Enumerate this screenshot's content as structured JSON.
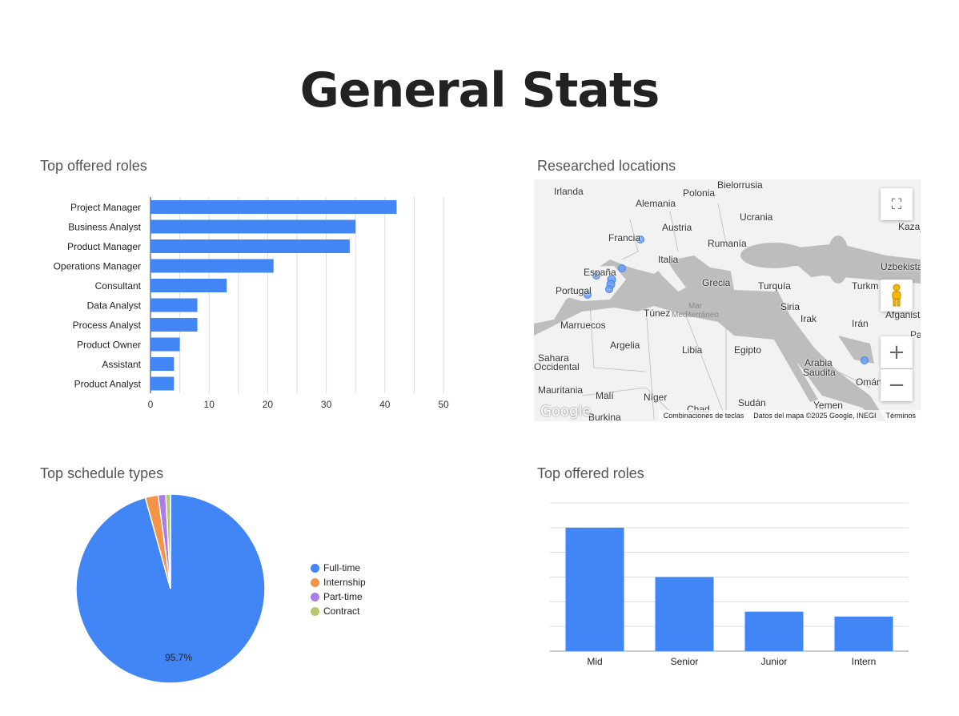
{
  "page": {
    "title": "General Stats"
  },
  "sections": {
    "roles_bar": "Top offered roles",
    "locations_map": "Researched locations",
    "schedule_pie": "Top schedule types",
    "seniority_bar": "Top offered roles"
  },
  "chart_data": [
    {
      "type": "bar",
      "orientation": "horizontal",
      "title": "Top offered roles",
      "categories": [
        "Project Manager",
        "Business Analyst",
        "Product Manager",
        "Operations Manager",
        "Consultant",
        "Data Analyst",
        "Process Analyst",
        "Product Owner",
        "Assistant",
        "Product Analyst"
      ],
      "values": [
        42,
        35,
        34,
        21,
        13,
        8,
        8,
        5,
        4,
        4
      ],
      "xlim": [
        0,
        50
      ],
      "ticks": [
        0,
        10,
        20,
        30,
        40,
        50
      ],
      "color": "#4285f4",
      "grid": true
    },
    {
      "type": "pie",
      "title": "Top schedule types",
      "labels": [
        "Full-time",
        "Internship",
        "Part-time",
        "Contract"
      ],
      "values": [
        95.7,
        2.2,
        1.3,
        0.8
      ],
      "colors": [
        "#4285f4",
        "#f4934a",
        "#ab7de8",
        "#b5c86a"
      ],
      "data_label": "95.7%",
      "legend": "right"
    },
    {
      "type": "bar",
      "orientation": "vertical",
      "title": "Top offered roles",
      "categories": [
        "Mid",
        "Senior",
        "Junior",
        "Intern"
      ],
      "values": [
        50,
        30,
        16,
        14
      ],
      "ylim": [
        0,
        60
      ],
      "color": "#4285f4",
      "grid": true
    }
  ],
  "map": {
    "labels": {
      "irlanda": "Irlanda",
      "polonia": "Polonia",
      "bielorrusia": "Bielorrusia",
      "alemania": "Alemania",
      "ucrania": "Ucrania",
      "kazaj": "Kazaj",
      "francia": "Francia",
      "austria": "Austria",
      "rumania": "Rumanía",
      "italia": "Italia",
      "uzbekista": "Uzbekista",
      "espana": "España",
      "portugal": "Portugal",
      "grecia": "Grecia",
      "turquia": "Turquía",
      "turkm": "Turkm",
      "mar": "Mar",
      "mediterraneo": "Mediterráneo",
      "siria": "Siria",
      "afganist": "Afganist",
      "tunez": "Túnez",
      "marruecos": "Marruecos",
      "irak": "Irak",
      "iran": "Irán",
      "pa": "Pa",
      "argelia": "Argelia",
      "libia": "Libia",
      "egipto": "Egipto",
      "sahara": "Sahara",
      "occidental": "Occidental",
      "arabia": "Arabia",
      "saudita": "Saudita",
      "mauritania": "Mauritania",
      "mali": "Malí",
      "niger": "Níger",
      "oman": "Omán",
      "sudan": "Sudán",
      "yemen": "Yemen",
      "chad": "Chad",
      "burkina": "Burkina"
    },
    "attribution": {
      "shortcuts": "Combinaciones de teclas",
      "data": "Datos del mapa ©2025 Google, INEGI",
      "terms": "Términos"
    },
    "logo": "Google",
    "icons": {
      "fullscreen": "fullscreen-icon",
      "pegman": "pegman-icon",
      "zoom_in": "plus-icon",
      "zoom_out": "minus-icon"
    }
  }
}
